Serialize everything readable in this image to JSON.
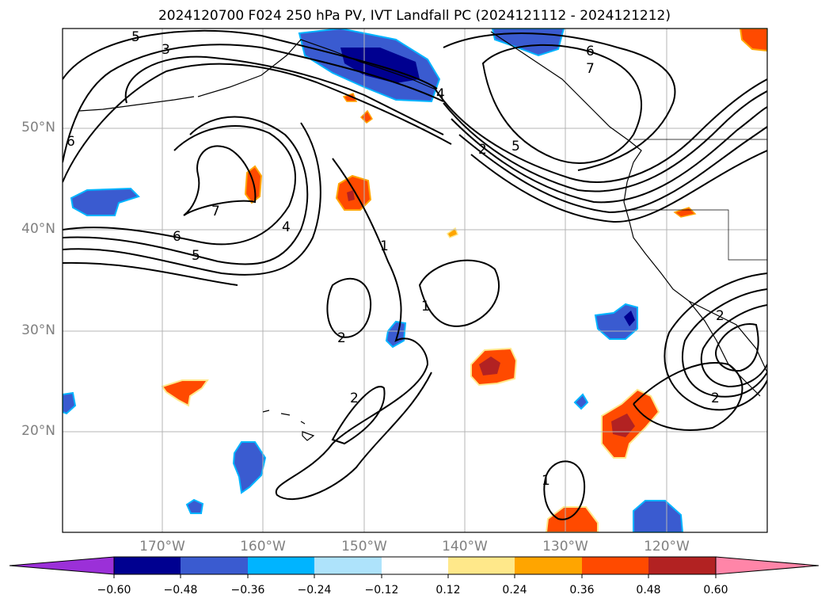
{
  "title": "2024120700 F024 250 hPa PV, IVT Landfall PC (2024121112 - 2024121212)",
  "map": {
    "lat_ticks": [
      "50°N",
      "40°N",
      "30°N",
      "20°N"
    ],
    "lon_ticks": [
      "170°W",
      "160°W",
      "150°W",
      "140°W",
      "130°W",
      "120°W"
    ],
    "contour_labels": [
      "5",
      "3",
      "6",
      "7",
      "6",
      "5",
      "4",
      "4",
      "1",
      "2",
      "1",
      "2",
      "5",
      "6",
      "7",
      "2",
      "1",
      "2",
      "2"
    ]
  },
  "colorbar": {
    "colors": [
      "#9b30d8",
      "#000090",
      "#3a5bd0",
      "#00b4ff",
      "#aee3fb",
      "#ffffff",
      "#ffe88a",
      "#ffa500",
      "#ff4a00",
      "#b22222",
      "#ff85a8"
    ],
    "labels": [
      "−0.60",
      "−0.48",
      "−0.36",
      "−0.24",
      "−0.12",
      "0.12",
      "0.24",
      "0.36",
      "0.48",
      "0.60"
    ]
  },
  "chart_data": {
    "type": "heatmap",
    "title": "2024120700 F024 250 hPa PV, IVT Landfall PC (2024121112 - 2024121212)",
    "x_ticks": [
      "170°W",
      "160°W",
      "150°W",
      "140°W",
      "130°W",
      "120°W"
    ],
    "y_ticks": [
      "50°N",
      "40°N",
      "30°N",
      "20°N"
    ],
    "color_levels": [
      -0.6,
      -0.48,
      -0.36,
      -0.24,
      -0.12,
      0.12,
      0.24,
      0.36,
      0.48,
      0.6
    ],
    "contour_levels": [
      1,
      2,
      3,
      4,
      5,
      6,
      7
    ],
    "grid": true
  }
}
